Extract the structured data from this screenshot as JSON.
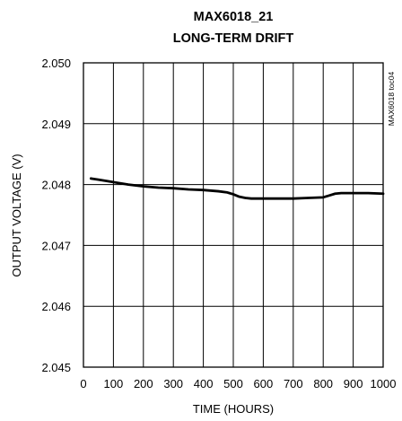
{
  "chart_data": {
    "type": "line",
    "title_line1": "MAX6018_21",
    "title_line2": "LONG-TERM DRIFT",
    "xlabel": "TIME (HOURS)",
    "ylabel": "OUTPUT VOLTAGE (V)",
    "side_label": "MAX6018 toc04",
    "xlim": [
      0,
      1000
    ],
    "ylim": [
      2.045,
      2.05
    ],
    "x_ticks": [
      "0",
      "100",
      "200",
      "300",
      "400",
      "500",
      "600",
      "700",
      "800",
      "900",
      "1000"
    ],
    "y_ticks": [
      "2.045",
      "2.046",
      "2.047",
      "2.048",
      "2.049",
      "2.050"
    ],
    "grid": true,
    "series": [
      {
        "x": [
          25,
          50,
          100,
          150,
          200,
          250,
          300,
          350,
          400,
          450,
          480,
          500,
          520,
          540,
          560,
          600,
          650,
          700,
          750,
          800,
          820,
          840,
          860,
          900,
          950,
          1000
        ],
        "y": [
          2.0481,
          2.04808,
          2.04804,
          2.048,
          2.04797,
          2.04795,
          2.04794,
          2.04792,
          2.04791,
          2.04789,
          2.04787,
          2.04784,
          2.0478,
          2.04778,
          2.04777,
          2.04777,
          2.04777,
          2.04777,
          2.04778,
          2.04779,
          2.04782,
          2.04785,
          2.04786,
          2.04786,
          2.04786,
          2.04785
        ]
      }
    ]
  }
}
